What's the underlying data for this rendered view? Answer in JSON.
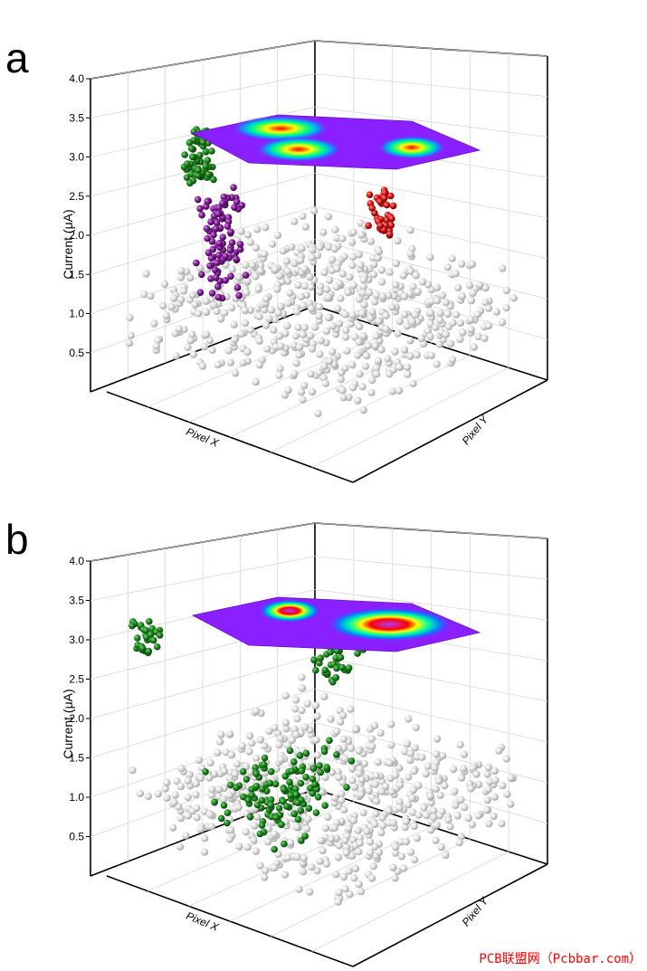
{
  "chart_data": [
    {
      "panel": "a",
      "type": "scatter",
      "zlabel": "Current (μA)",
      "xlabel": "Pixel X",
      "ylabel": "Pixel Y",
      "zlim": [
        0,
        4.0
      ],
      "z_ticks": [
        "0.5",
        "1.0",
        "1.5",
        "2.0",
        "2.5",
        "3.0",
        "3.5",
        "4.0"
      ],
      "grid": true,
      "colors": {
        "background": "#d9d9d9",
        "green": "#1e7a1e",
        "purple": "#7b1a8c",
        "red": "#e01a1a"
      },
      "series": [
        {
          "color": "#d9d9d9",
          "cluster": "base",
          "z_range": [
            0.1,
            1.0
          ],
          "count": 600
        },
        {
          "color": "#1e7a1e",
          "cluster": "upper",
          "z_range": [
            2.2,
            2.9
          ],
          "count": 70
        },
        {
          "color": "#7b1a8c",
          "cluster": "middle",
          "z_range": [
            0.6,
            2.0
          ],
          "count": 95
        },
        {
          "color": "#e01a1a",
          "cluster": "side",
          "z_range": [
            1.0,
            1.6
          ],
          "count": 38
        }
      ],
      "heatmap_plane": {
        "z": 3.3,
        "hotspots": 3
      }
    },
    {
      "panel": "b",
      "type": "scatter",
      "zlabel": "Current (μA)",
      "xlabel": "Pixel X",
      "ylabel": "Pixel Y",
      "zlim": [
        0,
        4.0
      ],
      "z_ticks": [
        "0.5",
        "1.0",
        "1.5",
        "2.0",
        "2.5",
        "3.0",
        "3.5",
        "4.0"
      ],
      "grid": true,
      "colors": {
        "background": "#d9d9d9",
        "green": "#1e7a1e"
      },
      "series": [
        {
          "color": "#d9d9d9",
          "cluster": "base",
          "z_range": [
            0.1,
            1.0
          ],
          "count": 600
        },
        {
          "color": "#1e7a1e",
          "cluster": "upper",
          "z_range": [
            2.6,
            3.0
          ],
          "count": 28
        },
        {
          "color": "#1e7a1e",
          "cluster": "side",
          "z_range": [
            1.6,
            2.4
          ],
          "count": 80
        },
        {
          "color": "#1e7a1e",
          "cluster": "base-band",
          "z_range": [
            0.2,
            1.0
          ],
          "count": 120
        }
      ],
      "heatmap_plane": {
        "z": 3.3,
        "hotspots": 2
      }
    }
  ],
  "panels": [
    {
      "letter": "a"
    },
    {
      "letter": "b"
    }
  ],
  "watermark": "PCB联盟网（Pcbbar.com）"
}
